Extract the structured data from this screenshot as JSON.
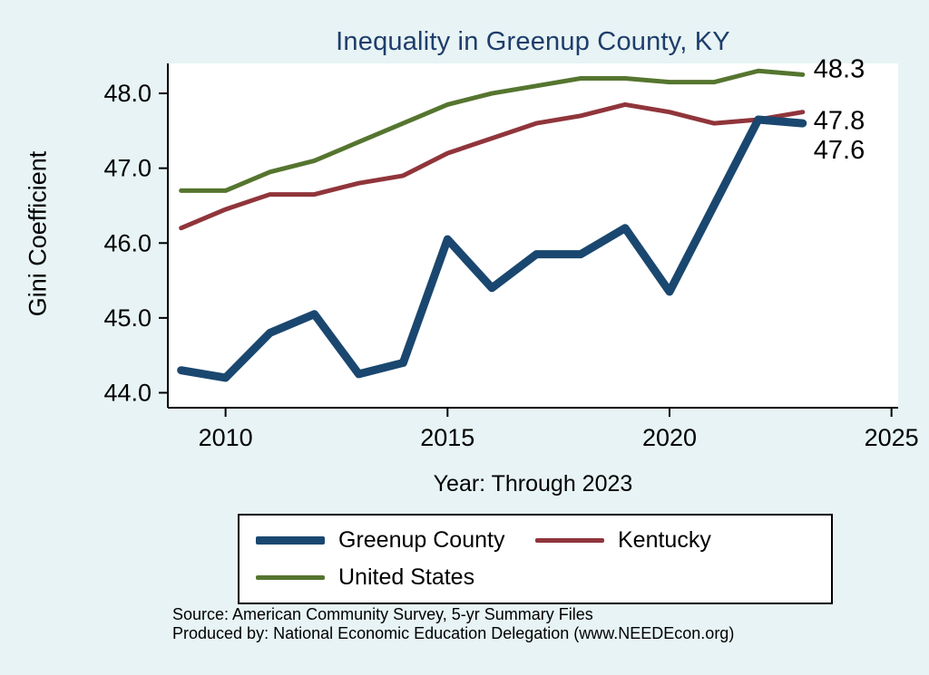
{
  "title": "Inequality in Greenup County, KY",
  "colors": {
    "background": "#e7f3f4",
    "plot_background": "#ffffff",
    "title_text": "#1e3d6b",
    "axis": "#000000",
    "greenup": "#1a476f",
    "kentucky": "#90353b",
    "united_states": "#55752f"
  },
  "chart_data": {
    "type": "line",
    "title": "Inequality in Greenup County, KY",
    "xlabel": "Year: Through 2023",
    "ylabel": "Gini Coefficient",
    "grid": false,
    "legend_position": "bottom",
    "xlim": [
      2008.7,
      2025.15
    ],
    "ylim": [
      43.8,
      48.4
    ],
    "xticks": [
      2010,
      2015,
      2020,
      2025
    ],
    "xtick_labels": [
      "2010",
      "2015",
      "2020",
      "2025"
    ],
    "yticks": [
      44.0,
      45.0,
      46.0,
      47.0,
      48.0
    ],
    "ytick_labels": [
      "44.0",
      "45.0",
      "46.0",
      "47.0",
      "48.0"
    ],
    "x": [
      2009,
      2010,
      2011,
      2012,
      2013,
      2014,
      2015,
      2016,
      2017,
      2018,
      2019,
      2020,
      2021,
      2022,
      2023
    ],
    "series": [
      {
        "name": "Greenup County",
        "color_key": "greenup",
        "width": 9,
        "end_label": "47.6",
        "values": [
          44.3,
          44.2,
          44.8,
          45.05,
          44.25,
          44.4,
          46.05,
          45.4,
          45.85,
          45.85,
          46.2,
          45.35,
          46.5,
          47.65,
          47.6
        ]
      },
      {
        "name": "Kentucky",
        "color_key": "kentucky",
        "width": 5,
        "end_label": "47.8",
        "values": [
          46.2,
          46.45,
          46.65,
          46.65,
          46.8,
          46.9,
          47.2,
          47.4,
          47.6,
          47.7,
          47.85,
          47.75,
          47.6,
          47.65,
          47.75
        ]
      },
      {
        "name": "United States",
        "color_key": "united_states",
        "width": 5,
        "end_label": "48.3",
        "values": [
          46.7,
          46.7,
          46.95,
          47.1,
          47.35,
          47.6,
          47.85,
          48.0,
          48.1,
          48.2,
          48.2,
          48.15,
          48.15,
          48.3,
          48.25
        ]
      }
    ]
  },
  "legend": {
    "items": [
      {
        "label": "Greenup County",
        "color_key": "greenup",
        "thickness": 9
      },
      {
        "label": "Kentucky",
        "color_key": "kentucky",
        "thickness": 5
      },
      {
        "label": "United States",
        "color_key": "united_states",
        "thickness": 5
      }
    ]
  },
  "source": {
    "line1": "Source: American Community Survey, 5-yr Summary Files",
    "line2": "Produced by: National Economic Education Delegation (www.NEEDEcon.org)"
  }
}
